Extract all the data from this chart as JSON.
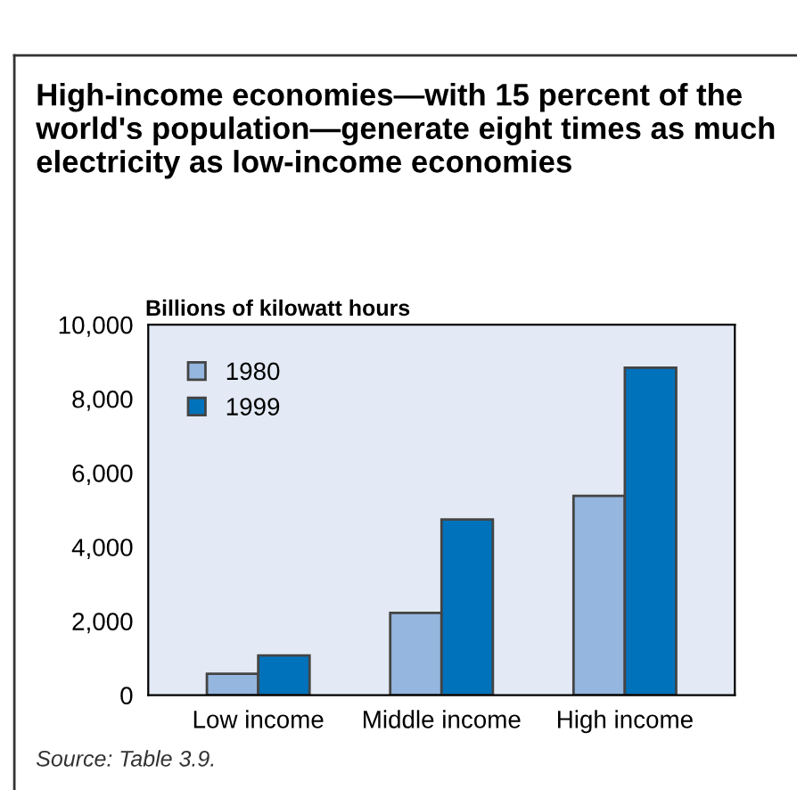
{
  "chart_data": {
    "type": "bar",
    "title": "High-income economies—with 15 percent of the world's population—generate eight times as much electricity as low-income economies",
    "ylabel": "Billions of kilowatt hours",
    "categories": [
      "Low income",
      "Middle income",
      "High income"
    ],
    "series": [
      {
        "name": "1980",
        "color": "#94b6df",
        "values": [
          580,
          2220,
          5380
        ]
      },
      {
        "name": "1999",
        "color": "#0072bc",
        "values": [
          1070,
          4740,
          8840
        ]
      }
    ],
    "ylim": [
      0,
      10000
    ],
    "yticks": [
      {
        "value": 0,
        "label": "0"
      },
      {
        "value": 2000,
        "label": "2,000"
      },
      {
        "value": 4000,
        "label": "4,000"
      },
      {
        "value": 6000,
        "label": "6,000"
      },
      {
        "value": 8000,
        "label": "8,000"
      },
      {
        "value": 10000,
        "label": "10,000"
      }
    ],
    "legend": "top left",
    "annotations": [
      "Source: Table 3.9."
    ]
  }
}
